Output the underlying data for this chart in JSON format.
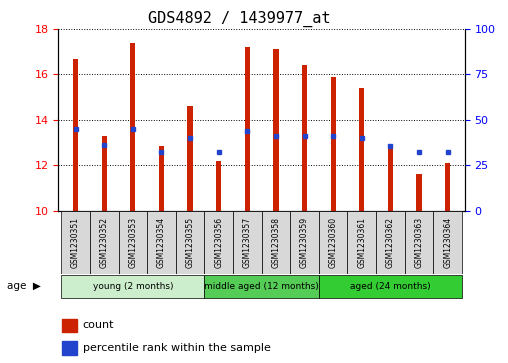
{
  "title": "GDS4892 / 1439977_at",
  "samples": [
    "GSM1230351",
    "GSM1230352",
    "GSM1230353",
    "GSM1230354",
    "GSM1230355",
    "GSM1230356",
    "GSM1230357",
    "GSM1230358",
    "GSM1230359",
    "GSM1230360",
    "GSM1230361",
    "GSM1230362",
    "GSM1230363",
    "GSM1230364"
  ],
  "bar_tops": [
    16.7,
    13.3,
    17.4,
    12.85,
    14.6,
    12.2,
    17.2,
    17.1,
    16.4,
    15.9,
    15.4,
    12.85,
    11.6,
    12.1
  ],
  "bar_base": 10.0,
  "blue_y": [
    13.6,
    12.9,
    13.6,
    12.6,
    13.2,
    12.6,
    13.5,
    13.3,
    13.3,
    13.3,
    13.2,
    12.85,
    12.6,
    12.6
  ],
  "bar_color": "#cc2200",
  "blue_color": "#2244cc",
  "ylim_left": [
    10,
    18
  ],
  "ylim_right": [
    0,
    100
  ],
  "yticks_left": [
    10,
    12,
    14,
    16,
    18
  ],
  "yticks_right": [
    0,
    25,
    50,
    75,
    100
  ],
  "groups": [
    {
      "label": "young (2 months)",
      "start": 0,
      "end": 5,
      "color": "#cceecc"
    },
    {
      "label": "middle aged (12 months)",
      "start": 5,
      "end": 9,
      "color": "#55cc55"
    },
    {
      "label": "aged (24 months)",
      "start": 9,
      "end": 14,
      "color": "#33cc33"
    }
  ],
  "age_label": "age",
  "legend_count": "count",
  "legend_percentile": "percentile rank within the sample",
  "background_color": "#ffffff",
  "bar_width": 0.18,
  "title_fontsize": 11,
  "tick_fontsize": 8,
  "label_fontsize": 7,
  "grid_linestyle": "dotted"
}
